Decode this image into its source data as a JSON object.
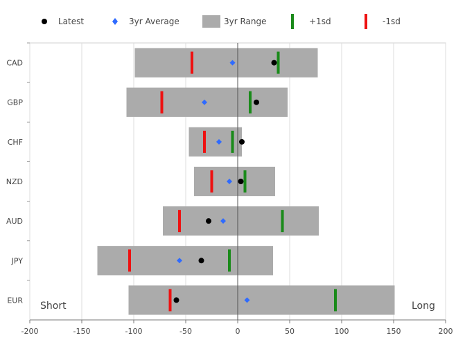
{
  "legend": [
    {
      "key": "latest",
      "label": "Latest",
      "color": "#000000",
      "marker": "circle"
    },
    {
      "key": "avg",
      "label": "3yr Average",
      "color": "#2f6bff",
      "marker": "diamond"
    },
    {
      "key": "range",
      "label": "3yr Range",
      "color": "#ababab",
      "marker": "box"
    },
    {
      "key": "plus1",
      "label": "+1sd",
      "color": "#1a8a1a",
      "marker": "vbar"
    },
    {
      "key": "minus1",
      "label": "-1sd",
      "color": "#ee1111",
      "marker": "vbar"
    }
  ],
  "annotations": {
    "left": "Short",
    "right": "Long"
  },
  "chart_data": {
    "type": "bar",
    "orientation": "horizontal",
    "categories": [
      "CAD",
      "GBP",
      "CHF",
      "NZD",
      "AUD",
      "JPY",
      "EUR"
    ],
    "xlim": [
      -200,
      200
    ],
    "xticks": [
      -200,
      -150,
      -100,
      -50,
      0,
      50,
      100,
      150,
      200
    ],
    "grid": "vertical",
    "legend_position": "top",
    "series": [
      {
        "name": "Latest",
        "values": [
          35,
          18,
          4,
          3,
          -28,
          -35,
          -59
        ]
      },
      {
        "name": "3yr Average",
        "values": [
          -5,
          -32,
          -18,
          -8,
          -14,
          -56,
          9
        ]
      },
      {
        "name": "3yr Range",
        "ranges": [
          [
            -99,
            77
          ],
          [
            -107,
            48
          ],
          [
            -47,
            4
          ],
          [
            -42,
            36
          ],
          [
            -72,
            78
          ],
          [
            -135,
            34
          ],
          [
            -105,
            151
          ]
        ]
      },
      {
        "name": "+1sd",
        "values": [
          39,
          12,
          -5,
          7,
          43,
          -8,
          94
        ]
      },
      {
        "name": "-1sd",
        "values": [
          -44,
          -73,
          -32,
          -25,
          -56,
          -104,
          -65
        ]
      }
    ]
  }
}
